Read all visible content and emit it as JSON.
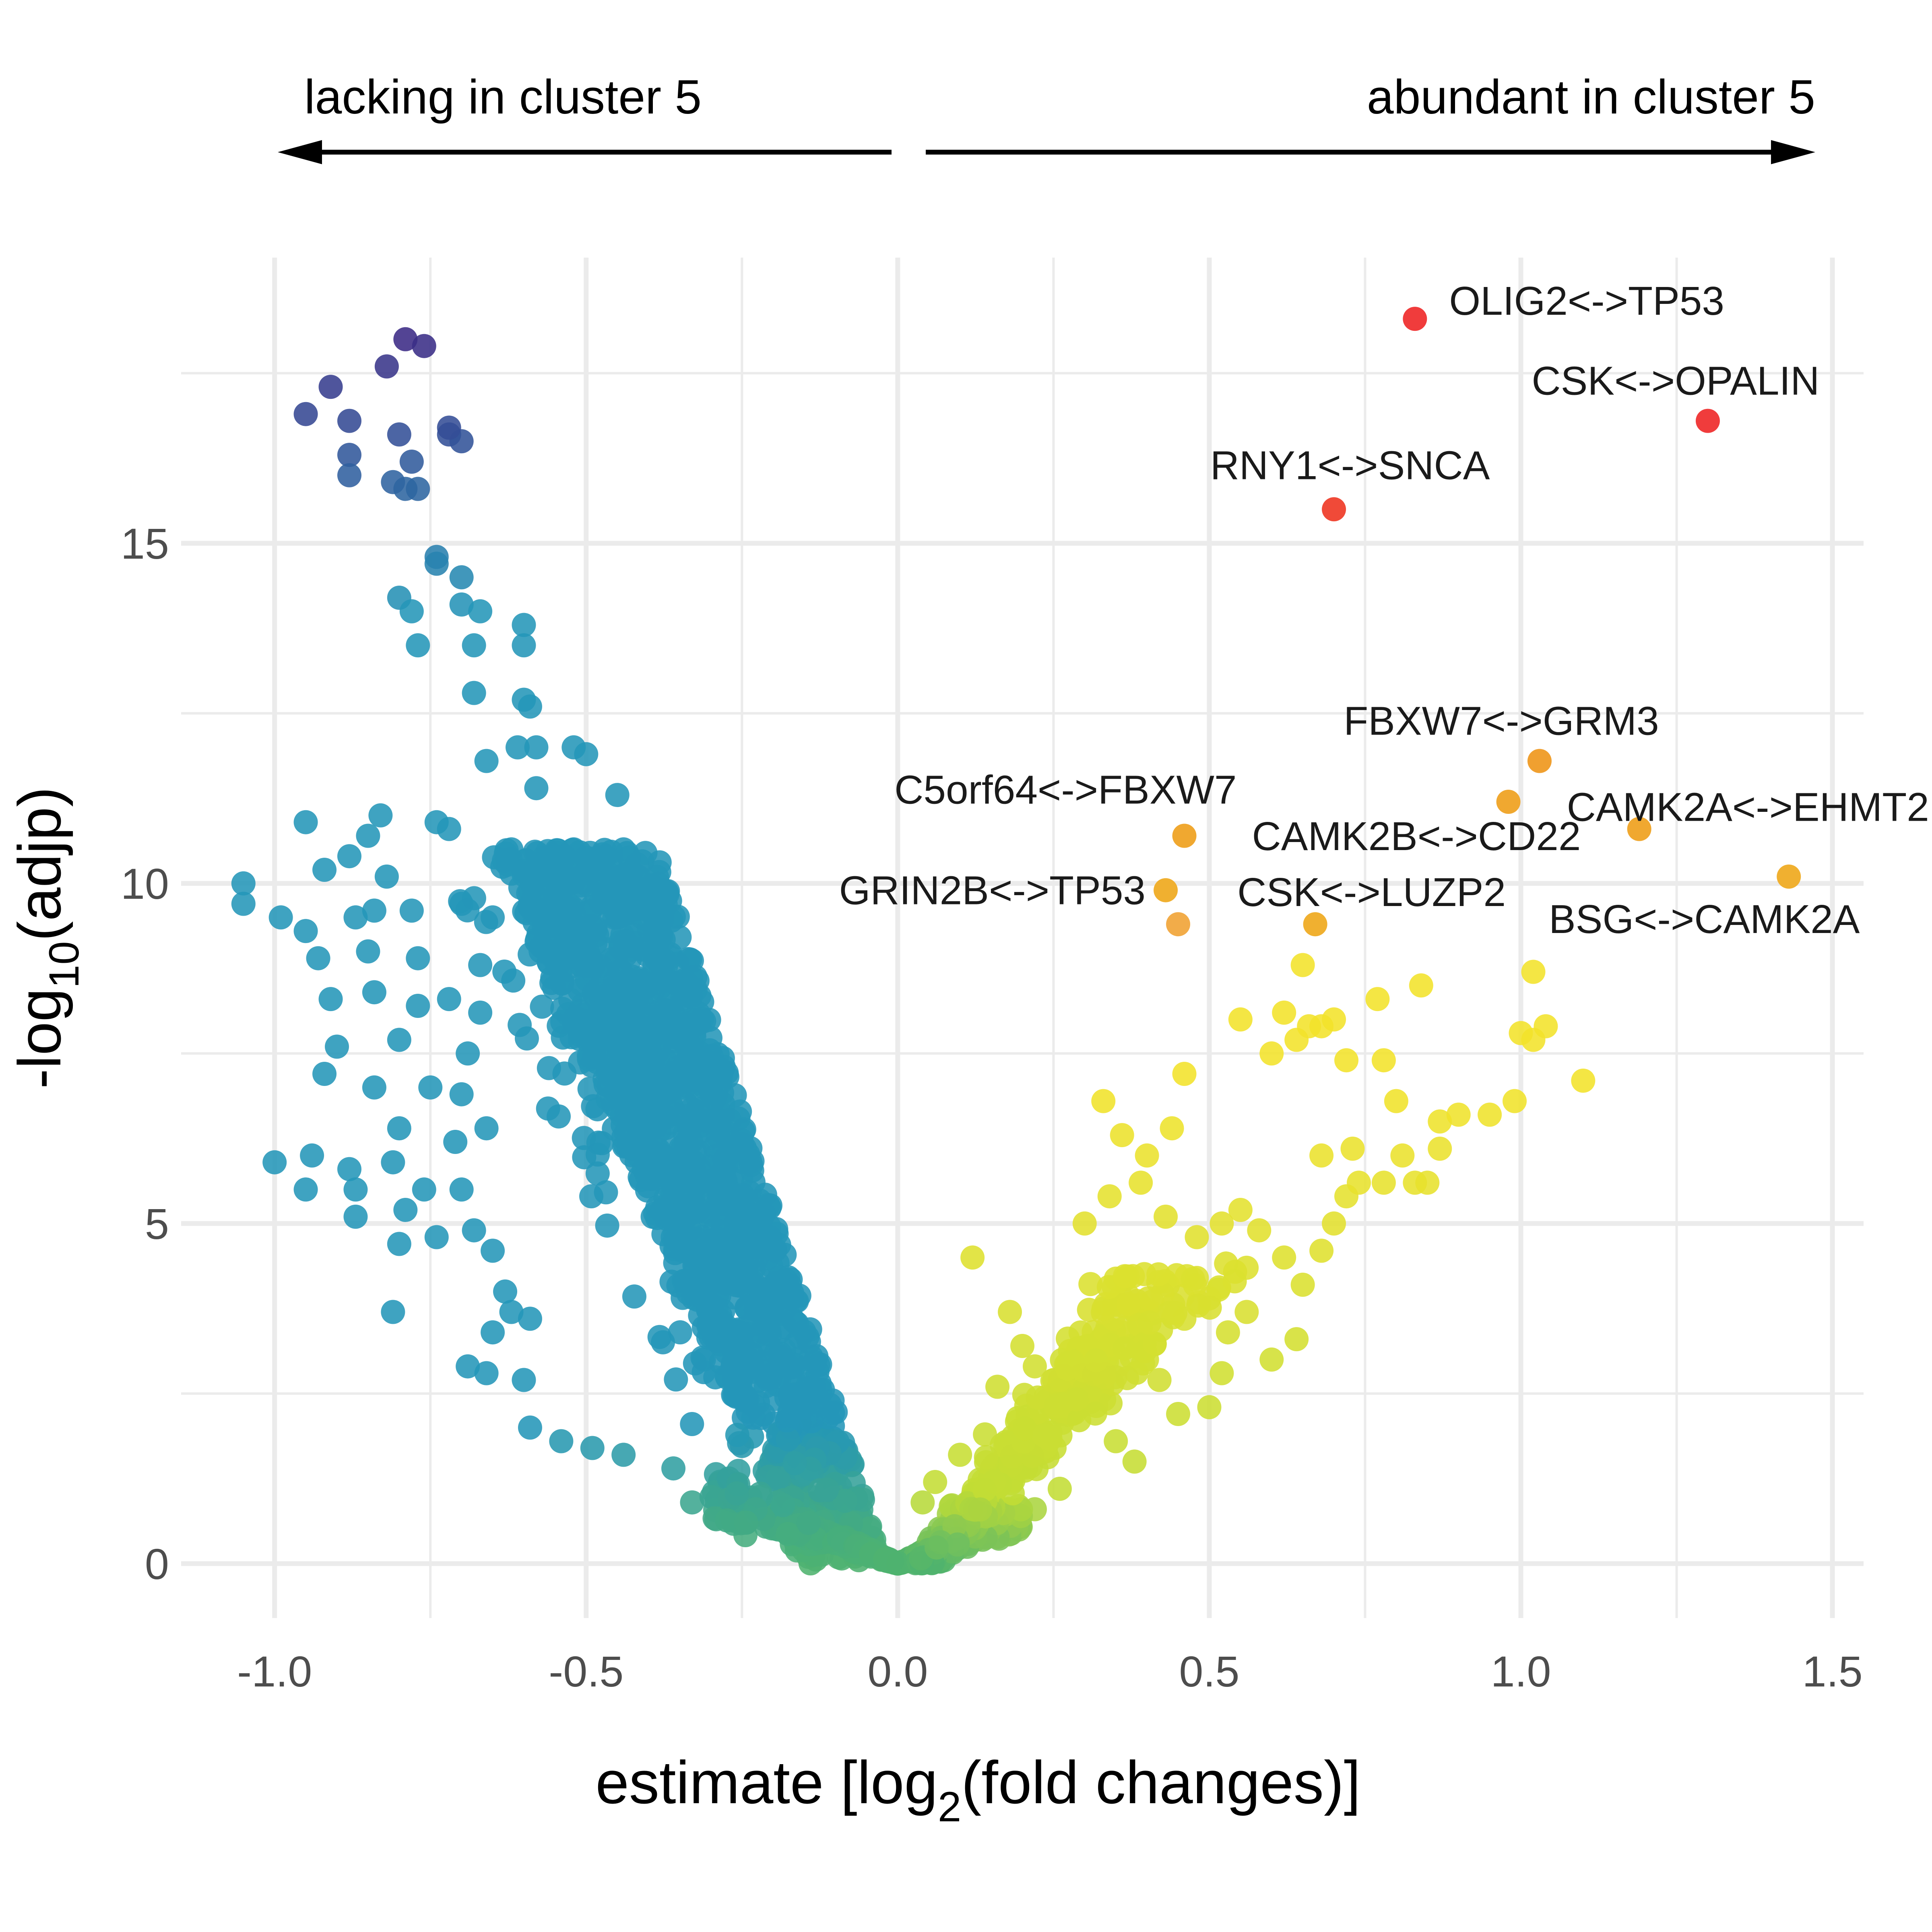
{
  "colors": {
    "background": "#ffffff",
    "grid": "#ebebeb",
    "point_low": "#3b2a85",
    "point_mid": "#2496b8",
    "point_zero": "#4fb36e",
    "point_right_low": "#c2dd34",
    "point_right_mid": "#f2e22a",
    "point_orange": "#f0a030",
    "point_red": "#f03c3c",
    "text": "#000000",
    "tick": "#4d4d4d"
  },
  "direction": {
    "left_label": "lacking in cluster 5",
    "right_label": "abundant in cluster 5",
    "arrow_icon": "arrow-icon"
  },
  "chart_data": {
    "type": "scatter",
    "title": "",
    "xlabel": "estimate [log2(fold changes)]",
    "xlabel_parts": {
      "main": "estimate [log",
      "sub": "2",
      "rest": "(fold changes)]"
    },
    "ylabel": "-log10(adjp)",
    "ylabel_parts": {
      "main": "-log",
      "sub": "10",
      "rest": "(adjp)"
    },
    "xlim": [
      -1.15,
      1.55
    ],
    "ylim": [
      -0.8,
      19.2
    ],
    "x_ticks": [
      -1.0,
      -0.5,
      0.0,
      0.5,
      1.0,
      1.5
    ],
    "x_tick_labels": [
      "-1.0",
      "-0.5",
      "0.0",
      "0.5",
      "1.0",
      "1.5"
    ],
    "y_ticks": [
      0,
      5,
      10,
      15
    ],
    "y_tick_labels": [
      "0",
      "5",
      "10",
      "15"
    ],
    "x_minor_ticks": [
      -0.75,
      -0.25,
      0.25,
      0.75,
      1.25
    ],
    "y_minor_ticks": [
      2.5,
      7.5,
      12.5,
      17.5
    ],
    "grid": true,
    "legend": "none",
    "labeled_points": [
      {
        "label": "OLIG2<->TP53",
        "x": 0.83,
        "y": 18.3,
        "color": "#f03c3c",
        "anchor": "start"
      },
      {
        "label": "CSK<->OPALIN",
        "x": 1.3,
        "y": 16.8,
        "color": "#f03c3c",
        "anchor": "middle"
      },
      {
        "label": "RNY1<->SNCA",
        "x": 0.7,
        "y": 15.5,
        "color": "#f04a38",
        "anchor": "middle"
      },
      {
        "label": "FBXW7<->GRM3",
        "x": 1.03,
        "y": 11.8,
        "color": "#f0a030",
        "anchor": "middle"
      },
      {
        "label": "C5orf64<->FBXW7",
        "x": 0.46,
        "y": 10.7,
        "color": "#f0a830",
        "anchor": "end"
      },
      {
        "label": "CAMK2A<->EHMT2",
        "x": 1.19,
        "y": 10.8,
        "color": "#f0a830",
        "anchor": "start"
      },
      {
        "label": "CAMK2B<->CD22",
        "x": 0.98,
        "y": 11.2,
        "color": "#f0a830",
        "anchor": "end"
      },
      {
        "label": "GRIN2B<->TP53",
        "x": 0.43,
        "y": 9.9,
        "color": "#f0b030",
        "anchor": "end"
      },
      {
        "label": "CSK<->LUZP2",
        "x": 0.67,
        "y": 9.4,
        "color": "#f0b030",
        "anchor": "middle"
      },
      {
        "label": "BSG<->CAMK2A",
        "x": 1.43,
        "y": 10.1,
        "color": "#f0b030",
        "anchor": "middle"
      }
    ],
    "unlabeled_points": [
      {
        "x": 0.45,
        "y": 9.4
      }
    ],
    "series": [
      {
        "name": "left-top",
        "points": [
          [
            -0.79,
            18.0
          ],
          [
            -0.76,
            17.9
          ],
          [
            -0.82,
            17.6
          ],
          [
            -0.91,
            17.3
          ],
          [
            -0.95,
            16.9
          ],
          [
            -0.88,
            16.8
          ],
          [
            -0.8,
            16.6
          ],
          [
            -0.72,
            16.6
          ],
          [
            -0.7,
            16.5
          ],
          [
            -0.72,
            16.7
          ],
          [
            -0.88,
            16.3
          ],
          [
            -0.78,
            16.2
          ],
          [
            -0.88,
            16.0
          ],
          [
            -0.81,
            15.9
          ],
          [
            -0.79,
            15.8
          ],
          [
            -0.77,
            15.8
          ]
        ]
      },
      {
        "name": "left-mid",
        "points": [
          [
            -0.74,
            14.8
          ],
          [
            -0.74,
            14.7
          ],
          [
            -0.7,
            14.5
          ],
          [
            -0.8,
            14.2
          ],
          [
            -0.78,
            14.0
          ],
          [
            -0.7,
            14.1
          ],
          [
            -0.67,
            14.0
          ],
          [
            -0.6,
            13.8
          ],
          [
            -0.6,
            13.5
          ],
          [
            -0.77,
            13.5
          ],
          [
            -0.68,
            13.5
          ],
          [
            -0.68,
            12.8
          ],
          [
            -0.6,
            12.7
          ],
          [
            -0.59,
            12.6
          ],
          [
            -0.61,
            12.0
          ],
          [
            -0.58,
            12.0
          ],
          [
            -0.66,
            11.8
          ],
          [
            -0.52,
            12.0
          ],
          [
            -0.5,
            11.9
          ],
          [
            -0.58,
            11.4
          ],
          [
            -0.45,
            11.3
          ],
          [
            -0.95,
            10.9
          ],
          [
            -0.83,
            11.0
          ],
          [
            -0.85,
            10.7
          ],
          [
            -0.74,
            10.9
          ],
          [
            -0.72,
            10.8
          ],
          [
            -0.62,
            10.5
          ],
          [
            -0.52,
            10.5
          ],
          [
            -0.47,
            10.4
          ],
          [
            -0.44,
            10.5
          ],
          [
            -0.88,
            10.4
          ],
          [
            -0.92,
            10.2
          ],
          [
            -0.82,
            10.1
          ],
          [
            -1.05,
            10.0
          ],
          [
            -1.05,
            9.7
          ],
          [
            -0.99,
            9.5
          ],
          [
            -0.95,
            9.3
          ],
          [
            -0.87,
            9.5
          ],
          [
            -0.84,
            9.6
          ],
          [
            -0.78,
            9.6
          ],
          [
            -0.7,
            9.7
          ],
          [
            -0.65,
            9.5
          ],
          [
            -0.93,
            8.9
          ],
          [
            -0.85,
            9.0
          ],
          [
            -0.77,
            8.9
          ],
          [
            -0.67,
            8.8
          ],
          [
            -0.91,
            8.3
          ],
          [
            -0.84,
            8.4
          ],
          [
            -0.77,
            8.2
          ],
          [
            -0.72,
            8.3
          ],
          [
            -0.67,
            8.1
          ],
          [
            -0.9,
            7.6
          ],
          [
            -0.8,
            7.7
          ],
          [
            -0.69,
            7.5
          ],
          [
            -0.92,
            7.2
          ],
          [
            -0.84,
            7.0
          ],
          [
            -0.75,
            7.0
          ],
          [
            -0.7,
            6.9
          ],
          [
            -0.8,
            6.4
          ],
          [
            -0.71,
            6.2
          ],
          [
            -0.66,
            6.4
          ],
          [
            -0.94,
            6.0
          ],
          [
            -0.88,
            5.8
          ],
          [
            -0.81,
            5.9
          ],
          [
            -0.87,
            5.5
          ],
          [
            -0.76,
            5.5
          ],
          [
            -0.95,
            5.5
          ],
          [
            -1.0,
            5.9
          ],
          [
            -0.7,
            5.5
          ],
          [
            -0.79,
            5.2
          ],
          [
            -0.87,
            5.1
          ],
          [
            -0.8,
            4.7
          ],
          [
            -0.74,
            4.8
          ],
          [
            -0.68,
            4.9
          ],
          [
            -0.65,
            4.6
          ],
          [
            -0.63,
            4.0
          ],
          [
            -0.62,
            3.7
          ],
          [
            -0.59,
            3.6
          ],
          [
            -0.81,
            3.7
          ],
          [
            -0.65,
            3.4
          ],
          [
            -0.69,
            2.9
          ],
          [
            -0.66,
            2.8
          ],
          [
            -0.6,
            2.7
          ],
          [
            -0.59,
            2.0
          ],
          [
            -0.54,
            1.8
          ],
          [
            -0.49,
            1.7
          ],
          [
            -0.44,
            1.6
          ],
          [
            -0.36,
            1.4
          ],
          [
            -0.33,
            0.9
          ],
          [
            -0.28,
            0.8
          ]
        ]
      },
      {
        "name": "right",
        "points": [
          [
            0.12,
            4.5
          ],
          [
            0.18,
            3.7
          ],
          [
            0.2,
            3.2
          ],
          [
            0.22,
            2.9
          ],
          [
            0.16,
            2.6
          ],
          [
            0.24,
            2.4
          ],
          [
            0.28,
            2.2
          ],
          [
            0.3,
            2.5
          ],
          [
            0.14,
            1.9
          ],
          [
            0.1,
            1.6
          ],
          [
            0.06,
            1.2
          ],
          [
            0.04,
            0.9
          ],
          [
            0.08,
            0.5
          ],
          [
            0.36,
            3.4
          ],
          [
            0.4,
            3.0
          ],
          [
            0.46,
            3.6
          ],
          [
            0.5,
            3.9
          ],
          [
            0.53,
            3.4
          ],
          [
            0.48,
            4.2
          ],
          [
            0.33,
            6.8
          ],
          [
            0.36,
            6.3
          ],
          [
            0.4,
            6.0
          ],
          [
            0.44,
            6.4
          ],
          [
            0.46,
            7.2
          ],
          [
            0.39,
            5.6
          ],
          [
            0.34,
            5.4
          ],
          [
            0.3,
            5.0
          ],
          [
            0.43,
            5.1
          ],
          [
            0.48,
            4.8
          ],
          [
            0.52,
            5.0
          ],
          [
            0.55,
            5.2
          ],
          [
            0.58,
            4.9
          ],
          [
            0.62,
            4.5
          ],
          [
            0.65,
            4.1
          ],
          [
            0.68,
            4.6
          ],
          [
            0.7,
            5.0
          ],
          [
            0.72,
            5.4
          ],
          [
            0.68,
            6.0
          ],
          [
            0.73,
            6.1
          ],
          [
            0.74,
            5.6
          ],
          [
            0.78,
            5.6
          ],
          [
            0.83,
            5.6
          ],
          [
            0.87,
            6.1
          ],
          [
            0.6,
            7.5
          ],
          [
            0.64,
            7.7
          ],
          [
            0.68,
            7.9
          ],
          [
            0.72,
            7.4
          ],
          [
            0.78,
            7.4
          ],
          [
            0.55,
            8.0
          ],
          [
            0.62,
            8.1
          ],
          [
            0.66,
            7.9
          ],
          [
            0.7,
            8.0
          ],
          [
            0.77,
            8.3
          ],
          [
            0.84,
            8.5
          ],
          [
            0.8,
            6.8
          ],
          [
            0.81,
            6.0
          ],
          [
            0.85,
            5.6
          ],
          [
            0.87,
            6.5
          ],
          [
            0.9,
            6.6
          ],
          [
            0.95,
            6.6
          ],
          [
            0.99,
            6.8
          ],
          [
            1.0,
            7.8
          ],
          [
            1.02,
            7.7
          ],
          [
            1.04,
            7.9
          ],
          [
            1.1,
            7.1
          ],
          [
            0.65,
            8.8
          ],
          [
            1.02,
            8.7
          ],
          [
            0.56,
            3.7
          ],
          [
            0.6,
            3.0
          ],
          [
            0.64,
            3.3
          ],
          [
            0.45,
            2.2
          ],
          [
            0.42,
            2.7
          ],
          [
            0.5,
            2.3
          ],
          [
            0.52,
            2.8
          ],
          [
            0.35,
            1.8
          ],
          [
            0.38,
            1.5
          ],
          [
            0.26,
            1.1
          ],
          [
            0.22,
            0.8
          ],
          [
            0.18,
            0.6
          ],
          [
            0.14,
            0.4
          ],
          [
            0.1,
            0.3
          ],
          [
            0.05,
            0.15
          ],
          [
            0.02,
            0.05
          ]
        ]
      }
    ]
  }
}
